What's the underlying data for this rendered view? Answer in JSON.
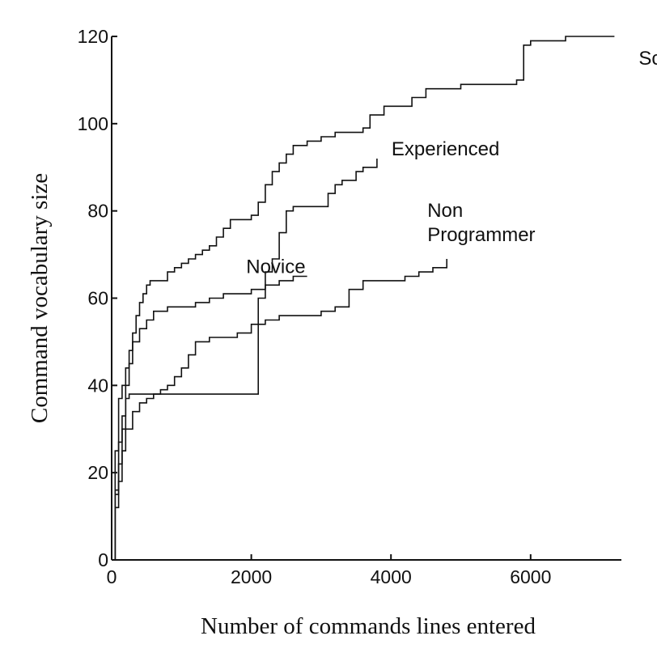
{
  "chart_data": {
    "type": "line",
    "title": "",
    "xlabel": "Number of commands lines entered",
    "ylabel": "Command vocabulary size",
    "xlim": [
      0,
      7300
    ],
    "ylim": [
      0,
      120
    ],
    "grid": false,
    "legend": "inline labels at line ends",
    "x_ticks": [
      0,
      2000,
      4000,
      6000
    ],
    "y_ticks": [
      0,
      20,
      40,
      60,
      80,
      100,
      120
    ],
    "series": [
      {
        "name": "Scientist",
        "label_lines": [
          "Scientist"
        ],
        "x": [
          0,
          50,
          100,
          150,
          200,
          250,
          300,
          350,
          400,
          450,
          500,
          550,
          600,
          700,
          800,
          900,
          1000,
          1100,
          1200,
          1300,
          1400,
          1500,
          1600,
          1700,
          1800,
          2000,
          2100,
          2200,
          2300,
          2400,
          2500,
          2600,
          2800,
          3000,
          3200,
          3600,
          3700,
          3900,
          4300,
          4500,
          5000,
          5500,
          5800,
          5900,
          6000,
          6500,
          6800,
          7200
        ],
        "y": [
          0,
          25,
          37,
          40,
          44,
          48,
          52,
          56,
          59,
          61,
          63,
          64,
          64,
          64,
          66,
          67,
          68,
          69,
          70,
          71,
          72,
          74,
          76,
          78,
          78,
          79,
          82,
          86,
          89,
          91,
          93,
          95,
          96,
          97,
          98,
          99,
          102,
          104,
          106,
          108,
          109,
          109,
          110,
          118,
          119,
          120,
          120,
          120
        ]
      },
      {
        "name": "Experienced",
        "label_lines": [
          "Experienced"
        ],
        "x": [
          0,
          50,
          100,
          150,
          200,
          250,
          300,
          350,
          400,
          450,
          500,
          600,
          700,
          800,
          1000,
          1200,
          1400,
          1600,
          1800,
          2000,
          2100,
          2200,
          2300,
          2400,
          2500,
          2600,
          2800,
          2900,
          3000,
          3100,
          3200,
          3300,
          3500,
          3600,
          3800
        ],
        "y": [
          0,
          16,
          27,
          33,
          37,
          38,
          38,
          38,
          38,
          38,
          38,
          38,
          38,
          38,
          38,
          38,
          38,
          38,
          38,
          38,
          60,
          66,
          69,
          75,
          80,
          81,
          81,
          81,
          81,
          84,
          86,
          87,
          89,
          90,
          92
        ]
      },
      {
        "name": "Novice",
        "label_lines": [
          "Novice"
        ],
        "x": [
          0,
          50,
          100,
          150,
          200,
          250,
          300,
          400,
          500,
          600,
          700,
          800,
          1000,
          1200,
          1400,
          1600,
          1800,
          2000,
          2200,
          2400,
          2600,
          2800
        ],
        "y": [
          0,
          15,
          22,
          30,
          40,
          45,
          50,
          53,
          55,
          57,
          57,
          58,
          58,
          59,
          60,
          61,
          61,
          62,
          63,
          64,
          65,
          65
        ]
      },
      {
        "name": "Non Programmer",
        "label_lines": [
          "Non",
          "Programmer"
        ],
        "x": [
          0,
          50,
          100,
          150,
          200,
          300,
          400,
          500,
          600,
          700,
          800,
          900,
          1000,
          1100,
          1200,
          1400,
          1600,
          1800,
          2000,
          2200,
          2400,
          2600,
          2800,
          3000,
          3200,
          3400,
          3600,
          3800,
          4000,
          4200,
          4400,
          4600,
          4800
        ],
        "y": [
          0,
          12,
          18,
          25,
          30,
          34,
          36,
          37,
          38,
          39,
          40,
          42,
          44,
          47,
          50,
          51,
          51,
          52,
          54,
          55,
          56,
          56,
          56,
          57,
          58,
          62,
          64,
          64,
          64,
          65,
          66,
          67,
          69
        ]
      }
    ]
  }
}
